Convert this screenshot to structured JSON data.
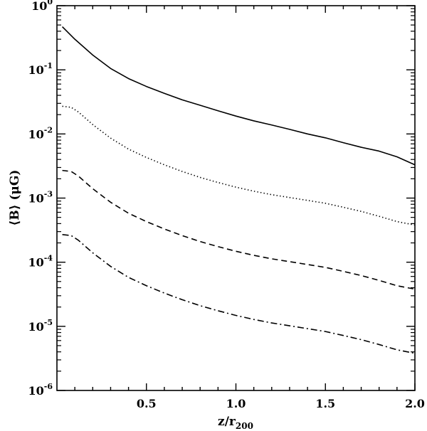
{
  "chart_data": {
    "type": "line",
    "xlabel": "z/r",
    "xlabel_sub": "200",
    "ylabel": "⟨B⟩ (μG)",
    "xlim": [
      0.0,
      2.0
    ],
    "ylim": [
      1e-06,
      1.0
    ],
    "yscale": "log",
    "grid": false,
    "legend": "none",
    "xticks": [
      0.5,
      1.0,
      1.5,
      2.0
    ],
    "xtick_labels": [
      "0.5",
      "1.0",
      "1.5",
      "2.0"
    ],
    "yticks": [
      {
        "value": 1e-06,
        "base": "10",
        "exp": "-6"
      },
      {
        "value": 1e-05,
        "base": "10",
        "exp": "-5"
      },
      {
        "value": 0.0001,
        "base": "10",
        "exp": "-4"
      },
      {
        "value": 0.001,
        "base": "10",
        "exp": "-3"
      },
      {
        "value": 0.01,
        "base": "10",
        "exp": "-2"
      },
      {
        "value": 0.1,
        "base": "10",
        "exp": "-1"
      },
      {
        "value": 1.0,
        "base": "10",
        "exp": "0"
      }
    ],
    "series": [
      {
        "style": "solid",
        "x": [
          0.03,
          0.1,
          0.2,
          0.3,
          0.4,
          0.5,
          0.6,
          0.7,
          0.8,
          0.9,
          1.0,
          1.1,
          1.2,
          1.3,
          1.4,
          1.5,
          1.6,
          1.7,
          1.8,
          1.9,
          2.0
        ],
        "y": [
          0.47,
          0.3,
          0.17,
          0.105,
          0.073,
          0.055,
          0.043,
          0.034,
          0.028,
          0.023,
          0.019,
          0.016,
          0.0138,
          0.0118,
          0.01,
          0.0087,
          0.0073,
          0.0062,
          0.0054,
          0.0044,
          0.0033
        ]
      },
      {
        "style": "dotted",
        "x": [
          0.03,
          0.08,
          0.12,
          0.2,
          0.3,
          0.4,
          0.5,
          0.6,
          0.7,
          0.8,
          0.9,
          1.0,
          1.1,
          1.2,
          1.3,
          1.4,
          1.5,
          1.6,
          1.7,
          1.8,
          1.9,
          2.0
        ],
        "y": [
          0.027,
          0.026,
          0.022,
          0.014,
          0.0086,
          0.0058,
          0.0043,
          0.0033,
          0.0026,
          0.0021,
          0.00175,
          0.00148,
          0.00128,
          0.00113,
          0.00102,
          0.00092,
          0.00083,
          0.00072,
          0.00062,
          0.00052,
          0.00043,
          0.00038
        ]
      },
      {
        "style": "dashed",
        "x": [
          0.03,
          0.08,
          0.12,
          0.2,
          0.3,
          0.4,
          0.5,
          0.6,
          0.7,
          0.8,
          0.9,
          1.0,
          1.1,
          1.2,
          1.3,
          1.4,
          1.5,
          1.6,
          1.7,
          1.8,
          1.9,
          2.0
        ],
        "y": [
          0.0027,
          0.0026,
          0.0022,
          0.0014,
          0.00086,
          0.00058,
          0.00043,
          0.00033,
          0.00026,
          0.00021,
          0.000175,
          0.000148,
          0.000128,
          0.000113,
          0.000102,
          9.2e-05,
          8.3e-05,
          7.2e-05,
          6.2e-05,
          5.2e-05,
          4.3e-05,
          3.8e-05
        ]
      },
      {
        "style": "dashdot",
        "x": [
          0.03,
          0.08,
          0.12,
          0.2,
          0.3,
          0.4,
          0.5,
          0.6,
          0.7,
          0.8,
          0.9,
          1.0,
          1.1,
          1.2,
          1.3,
          1.4,
          1.5,
          1.6,
          1.7,
          1.8,
          1.9,
          2.0
        ],
        "y": [
          0.00027,
          0.00026,
          0.00022,
          0.00014,
          8.6e-05,
          5.8e-05,
          4.3e-05,
          3.3e-05,
          2.6e-05,
          2.1e-05,
          1.75e-05,
          1.48e-05,
          1.28e-05,
          1.13e-05,
          1.02e-05,
          9.2e-06,
          8.3e-06,
          7.2e-06,
          6.2e-06,
          5.2e-06,
          4.3e-06,
          3.8e-06
        ]
      }
    ]
  }
}
